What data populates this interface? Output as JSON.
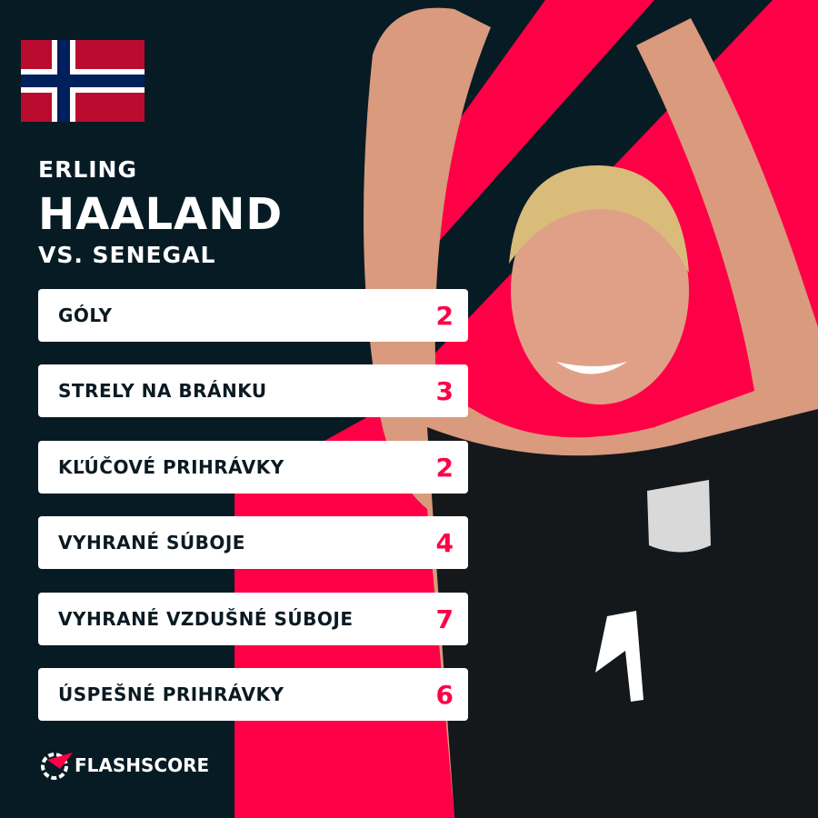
{
  "header": {
    "first_name": "ERLING",
    "last_name": "HAALAND",
    "opponent": "VS. SENEGAL"
  },
  "stats": [
    {
      "label": "GÓLY",
      "value": 2
    },
    {
      "label": "STRELY NA BRÁNKU",
      "value": 3
    },
    {
      "label": "KĽÚČOVÉ PRIHRÁVKY",
      "value": 2
    },
    {
      "label": "VYHRANÉ SÚBOJE",
      "value": 4
    },
    {
      "label": "VYHRANÉ VZDUŠNÉ SÚBOJE",
      "value": 7
    },
    {
      "label": "ÚSPEŠNÉ PRIHRÁVKY",
      "value": 6
    }
  ],
  "brand": "FLASHSCORE"
}
